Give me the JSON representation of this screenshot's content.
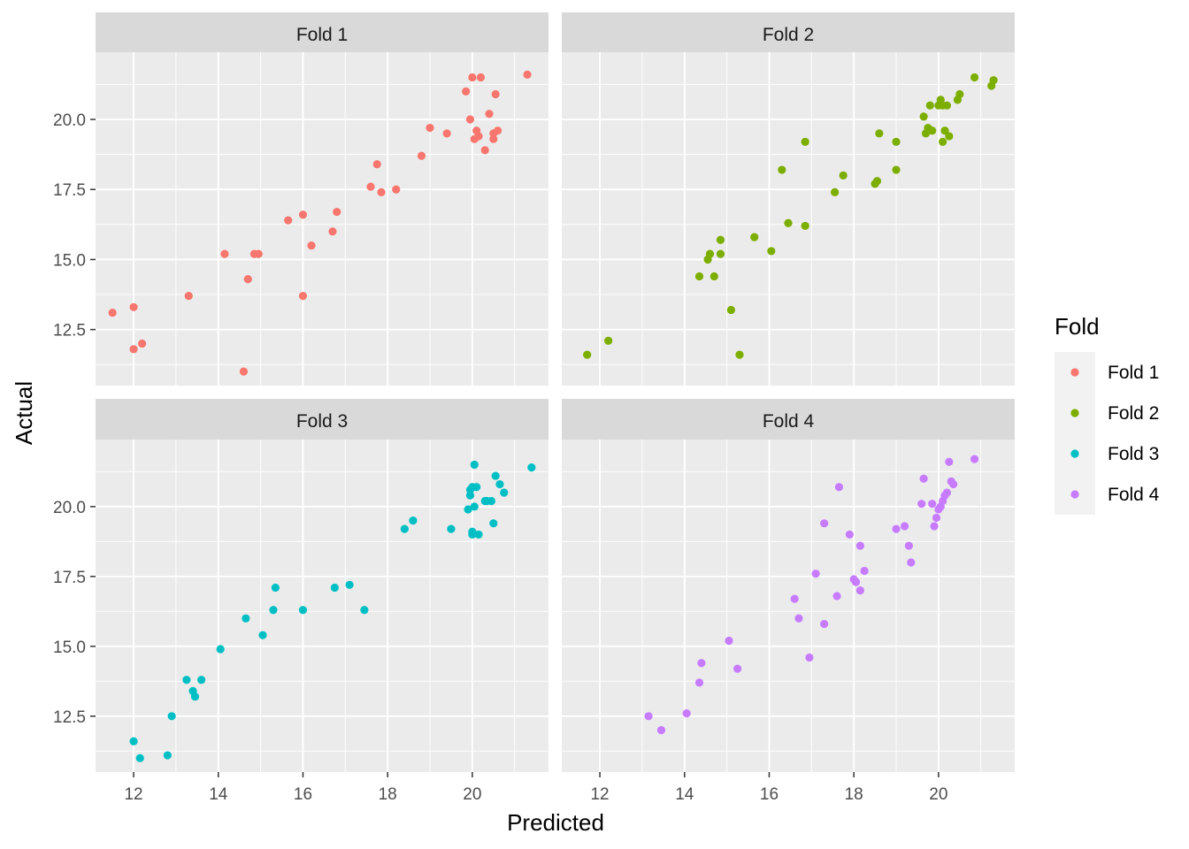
{
  "chart_data": {
    "type": "scatter",
    "facets": [
      "Fold 1",
      "Fold 2",
      "Fold 3",
      "Fold 4"
    ],
    "xlabel": "Predicted",
    "ylabel": "Actual",
    "xlim": [
      11.1,
      21.8
    ],
    "ylim": [
      10.5,
      22.4
    ],
    "x_ticks": [
      12,
      14,
      16,
      18,
      20
    ],
    "x_tick_labels": [
      "12",
      "14",
      "16",
      "18",
      "20"
    ],
    "y_ticks": [
      12.5,
      15.0,
      17.5,
      20.0
    ],
    "y_tick_labels": [
      "12.5",
      "15.0",
      "17.5",
      "20.0"
    ],
    "grid": true,
    "legend": {
      "title": "Fold",
      "position": "right",
      "entries": [
        "Fold 1",
        "Fold 2",
        "Fold 3",
        "Fold 4"
      ]
    },
    "colors": [
      "#F8766D",
      "#7CAE00",
      "#00BFC4",
      "#C77CFF"
    ],
    "series": [
      {
        "name": "Fold 1",
        "x": [
          11.5,
          12.0,
          12.0,
          12.2,
          13.3,
          14.15,
          14.6,
          14.7,
          14.85,
          14.95,
          15.65,
          16.0,
          16.0,
          16.2,
          16.7,
          16.8,
          17.6,
          17.75,
          17.85,
          18.2,
          18.8,
          19.0,
          19.4,
          19.85,
          19.95,
          20.0,
          20.05,
          20.1,
          20.15,
          20.2,
          20.3,
          20.4,
          20.5,
          20.5,
          20.55,
          20.6,
          21.3
        ],
        "y": [
          13.1,
          13.3,
          11.8,
          12.0,
          13.7,
          15.2,
          11.0,
          14.3,
          15.2,
          15.2,
          16.4,
          16.6,
          13.7,
          15.5,
          16.0,
          16.7,
          17.6,
          18.4,
          17.4,
          17.5,
          18.7,
          19.7,
          19.5,
          21.0,
          20.0,
          21.5,
          19.3,
          19.6,
          19.4,
          21.5,
          18.9,
          20.2,
          19.3,
          19.5,
          20.9,
          19.6,
          21.6
        ]
      },
      {
        "name": "Fold 2",
        "x": [
          11.7,
          12.2,
          14.35,
          14.55,
          14.6,
          14.7,
          14.85,
          14.85,
          15.1,
          15.3,
          15.65,
          16.05,
          16.3,
          16.45,
          16.85,
          16.85,
          17.55,
          17.75,
          18.5,
          18.55,
          18.6,
          19.0,
          19.0,
          19.65,
          19.7,
          19.75,
          19.8,
          19.85,
          20.0,
          20.05,
          20.1,
          20.1,
          20.15,
          20.2,
          20.25,
          20.45,
          20.5,
          20.85,
          21.25,
          21.3
        ],
        "y": [
          11.6,
          12.1,
          14.4,
          15.0,
          15.2,
          14.4,
          15.2,
          15.7,
          13.2,
          11.6,
          15.8,
          15.3,
          18.2,
          16.3,
          19.2,
          16.2,
          17.4,
          18.0,
          17.7,
          17.8,
          19.5,
          18.2,
          19.2,
          20.1,
          19.5,
          19.7,
          20.5,
          19.6,
          20.5,
          20.7,
          20.5,
          19.2,
          19.6,
          20.5,
          19.4,
          20.7,
          20.9,
          21.5,
          21.2,
          21.4
        ]
      },
      {
        "name": "Fold 3",
        "x": [
          12.0,
          12.15,
          12.8,
          12.9,
          13.25,
          13.4,
          13.45,
          13.6,
          14.05,
          14.65,
          15.05,
          15.3,
          15.35,
          16.0,
          16.75,
          17.1,
          17.45,
          18.4,
          18.6,
          19.5,
          19.9,
          19.95,
          19.95,
          20.0,
          20.0,
          20.0,
          20.05,
          20.05,
          20.1,
          20.15,
          20.3,
          20.35,
          20.45,
          20.5,
          20.55,
          20.65,
          20.75,
          21.4
        ],
        "y": [
          11.6,
          11.0,
          11.1,
          12.5,
          13.8,
          13.4,
          13.2,
          13.8,
          14.9,
          16.0,
          15.4,
          16.3,
          17.1,
          16.3,
          17.1,
          17.2,
          16.3,
          19.2,
          19.5,
          19.2,
          19.9,
          20.4,
          20.6,
          19.1,
          19.0,
          20.7,
          21.5,
          20.0,
          20.7,
          19.0,
          20.2,
          20.2,
          20.2,
          19.4,
          21.1,
          20.8,
          20.5,
          21.4
        ]
      },
      {
        "name": "Fold 4",
        "x": [
          13.15,
          13.45,
          14.05,
          14.35,
          14.4,
          15.05,
          15.25,
          16.6,
          16.7,
          16.95,
          17.1,
          17.3,
          17.3,
          17.6,
          17.65,
          17.9,
          18.0,
          18.05,
          18.15,
          18.15,
          18.25,
          19.0,
          19.2,
          19.3,
          19.35,
          19.6,
          19.65,
          19.85,
          19.9,
          19.95,
          20.0,
          20.05,
          20.1,
          20.15,
          20.2,
          20.25,
          20.3,
          20.35,
          20.85
        ],
        "y": [
          12.5,
          12.0,
          12.6,
          13.7,
          14.4,
          15.2,
          14.2,
          16.7,
          16.0,
          14.6,
          17.6,
          15.8,
          19.4,
          16.8,
          20.7,
          19.0,
          17.4,
          17.3,
          17.0,
          18.6,
          17.7,
          19.2,
          19.3,
          18.6,
          18.0,
          20.1,
          21.0,
          20.1,
          19.3,
          19.6,
          19.9,
          20.0,
          20.2,
          20.4,
          20.5,
          21.6,
          20.9,
          20.8,
          21.7
        ]
      }
    ]
  }
}
